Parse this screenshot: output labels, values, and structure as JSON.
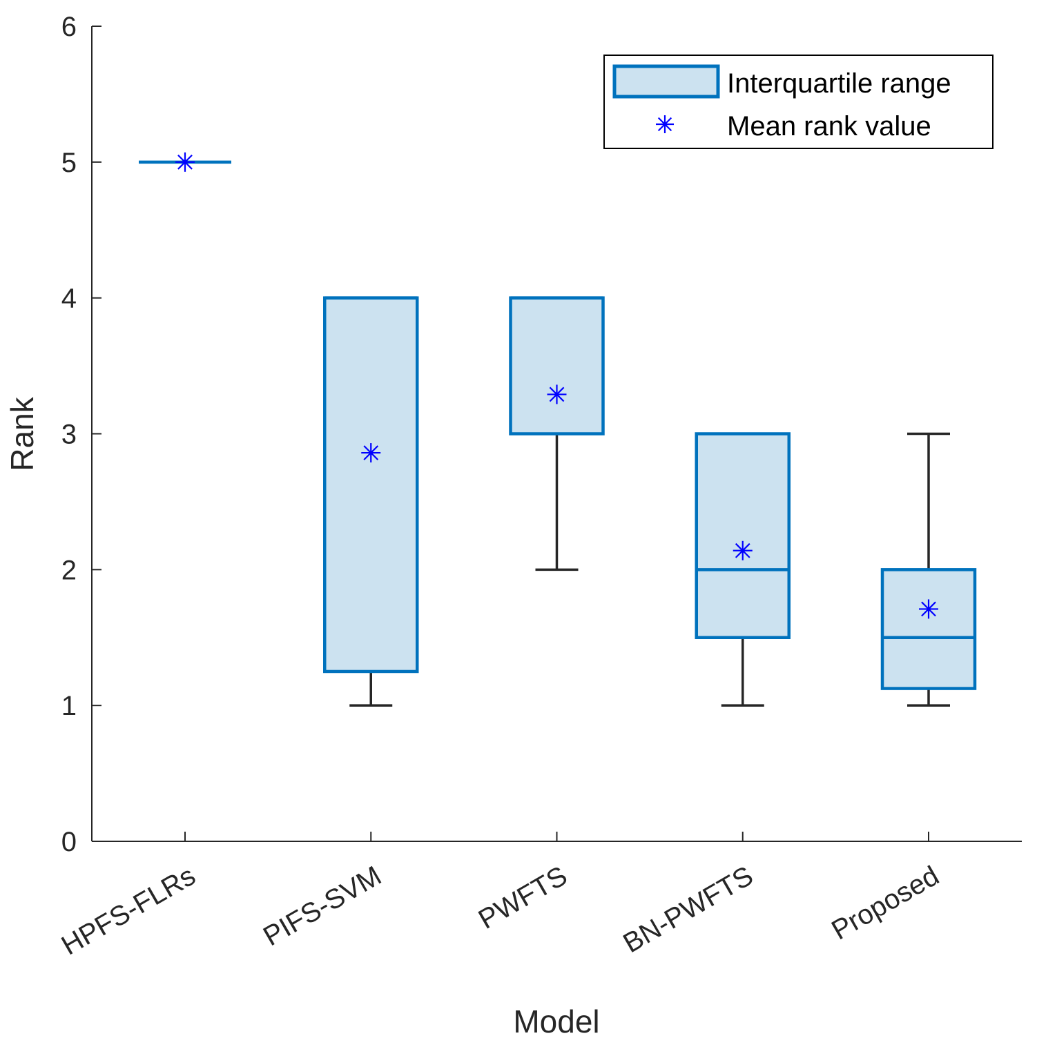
{
  "chart_data": {
    "type": "box",
    "xlabel": "Model",
    "ylabel": "Rank",
    "ylim": [
      0,
      6
    ],
    "yticks": [
      0,
      1,
      2,
      3,
      4,
      5,
      6
    ],
    "categories": [
      "HPFS-FLRs",
      "PIFS-SVM",
      "PWFTS",
      "BN-PWFTS",
      "Proposed"
    ],
    "boxes": [
      {
        "category": "HPFS-FLRs",
        "q1": 5,
        "median": 5,
        "q3": 5,
        "whisker_low": 5,
        "whisker_high": 5,
        "mean": 5.0
      },
      {
        "category": "PIFS-SVM",
        "q1": 1.25,
        "median": 4,
        "q3": 4,
        "whisker_low": 1,
        "whisker_high": 4,
        "mean": 2.86
      },
      {
        "category": "PWFTS",
        "q1": 3,
        "median": 4,
        "q3": 4,
        "whisker_low": 2,
        "whisker_high": 4,
        "mean": 3.29
      },
      {
        "category": "BN-PWFTS",
        "q1": 1.5,
        "median": 2,
        "q3": 3,
        "whisker_low": 1,
        "whisker_high": 3,
        "mean": 2.14
      },
      {
        "category": "Proposed",
        "q1": 1.125,
        "median": 1.5,
        "q3": 2,
        "whisker_low": 1,
        "whisker_high": 3,
        "mean": 1.71
      }
    ],
    "legend": {
      "position": "top-right",
      "entries": [
        "Interquartile range",
        "Mean rank value"
      ]
    },
    "colors": {
      "box_edge": "#0072bd",
      "box_fill": "#cce2f0",
      "whisker": "#262626",
      "mean_marker": "#0000ff",
      "axis": "#262626"
    }
  }
}
